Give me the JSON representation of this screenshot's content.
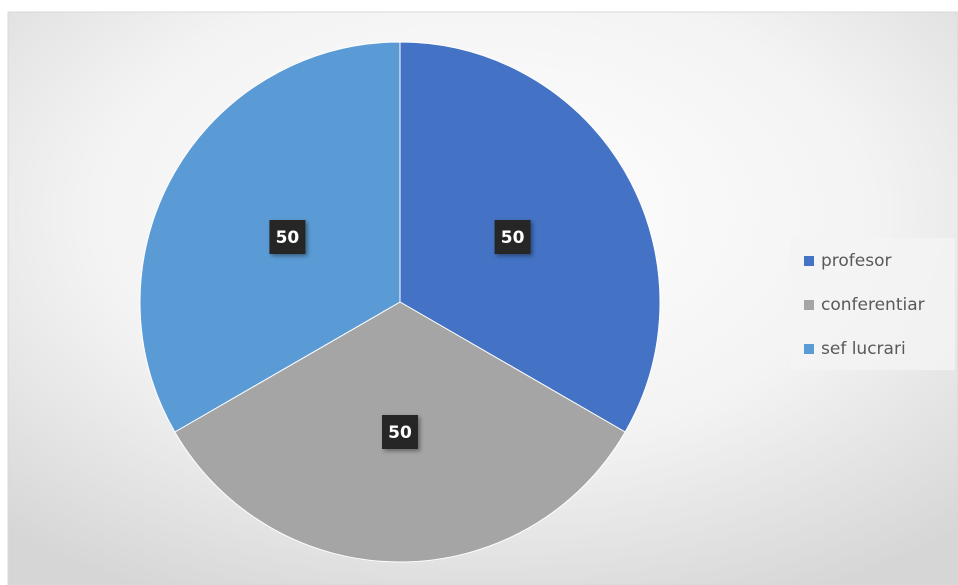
{
  "chart_data": {
    "type": "pie",
    "categories": [
      "profesor",
      "conferentiar",
      "sef lucrari"
    ],
    "values": [
      50,
      50,
      50
    ],
    "colors": [
      "#4472c4",
      "#a5a5a5",
      "#5b9bd5"
    ],
    "legend": "right"
  }
}
